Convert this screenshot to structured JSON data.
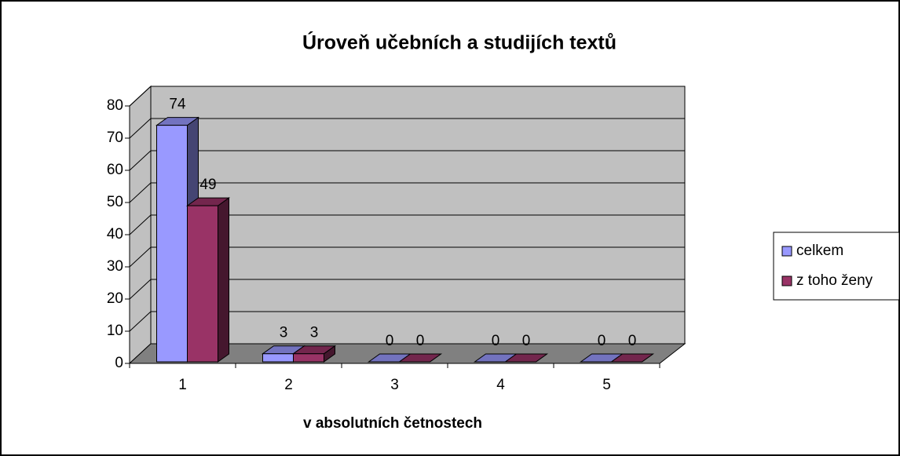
{
  "chart_data": {
    "type": "bar",
    "title": "Úroveň učebních a studijích textů",
    "x_label": "v absolutních četnostech",
    "categories": [
      "1",
      "2",
      "3",
      "4",
      "5"
    ],
    "series": [
      {
        "name": "celkem",
        "color": "#9999ff",
        "values": [
          74,
          3,
          0,
          0,
          0
        ]
      },
      {
        "name": "z toho ženy",
        "color": "#993366",
        "values": [
          49,
          3,
          0,
          0,
          0
        ]
      }
    ],
    "ylim": [
      0,
      80
    ],
    "yticks": [
      0,
      10,
      20,
      30,
      40,
      50,
      60,
      70,
      80
    ],
    "grid": true,
    "legend": "right"
  }
}
